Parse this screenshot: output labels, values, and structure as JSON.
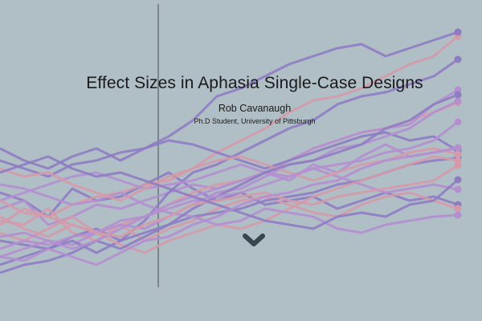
{
  "hero": {
    "title": "Effect Sizes in Aphasia Single-Case Designs",
    "author": "Rob Cavanaugh",
    "affiliation": "Ph.D Student, University of Pittsburgh",
    "scroll_icon": "chevron-down-icon"
  },
  "colors": {
    "background": "#b0bec5",
    "line_purple": "#8e7cc3",
    "line_lilac": "#b48fd0",
    "line_pink": "#d59aaa",
    "chevron": "#37474f",
    "divider": "#6d7278"
  }
}
